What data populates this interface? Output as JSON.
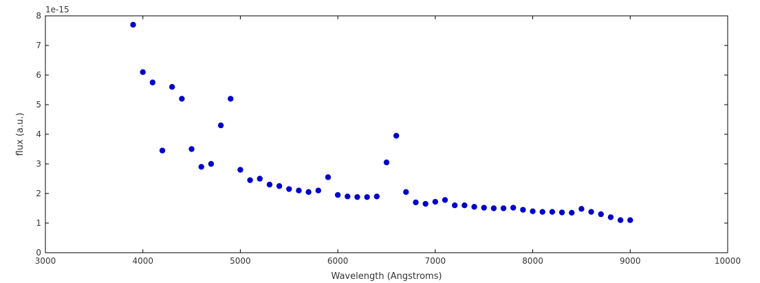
{
  "chart_data": {
    "type": "scatter",
    "xlabel": "Wavelength (Angstroms)",
    "ylabel": "flux (a.u.)",
    "y_exponent_label": "1e-15",
    "xlim": [
      3000,
      10000
    ],
    "ylim": [
      0,
      8
    ],
    "xticks": [
      3000,
      4000,
      5000,
      6000,
      7000,
      8000,
      9000,
      10000
    ],
    "xtick_labels": [
      "3000",
      "4000",
      "5000",
      "6000",
      "7000",
      "8000",
      "9000",
      "10000"
    ],
    "yticks": [
      0,
      1,
      2,
      3,
      4,
      5,
      6,
      7,
      8
    ],
    "ytick_labels": [
      "0",
      "1",
      "2",
      "3",
      "4",
      "5",
      "6",
      "7",
      "8"
    ],
    "grid": false,
    "marker_color": "#0000cc",
    "series": [
      {
        "x": [
          3900,
          4000,
          4100,
          4200,
          4300,
          4400,
          4500,
          4600,
          4700,
          4800,
          4900,
          5000,
          5100,
          5200,
          5300,
          5400,
          5500,
          5600,
          5700,
          5800,
          5900,
          6000,
          6100,
          6200,
          6300,
          6400,
          6500,
          6600,
          6700,
          6800,
          6900,
          7000,
          7100,
          7200,
          7300,
          7400,
          7500,
          7600,
          7700,
          7800,
          7900,
          8000,
          8100,
          8200,
          8300,
          8400,
          8500,
          8600,
          8700,
          8800,
          8900,
          9000
        ],
        "y": [
          7.7,
          6.1,
          5.75,
          3.45,
          5.6,
          5.2,
          3.5,
          2.9,
          3.0,
          4.3,
          5.2,
          2.8,
          2.45,
          2.5,
          2.3,
          2.25,
          2.15,
          2.1,
          2.05,
          2.1,
          2.55,
          1.95,
          1.9,
          1.88,
          1.88,
          1.9,
          3.05,
          3.95,
          2.05,
          1.7,
          1.65,
          1.72,
          1.78,
          1.6,
          1.6,
          1.55,
          1.52,
          1.5,
          1.5,
          1.52,
          1.45,
          1.4,
          1.38,
          1.38,
          1.36,
          1.35,
          1.48,
          1.38,
          1.3,
          1.2,
          1.1,
          1.1
        ]
      }
    ]
  }
}
